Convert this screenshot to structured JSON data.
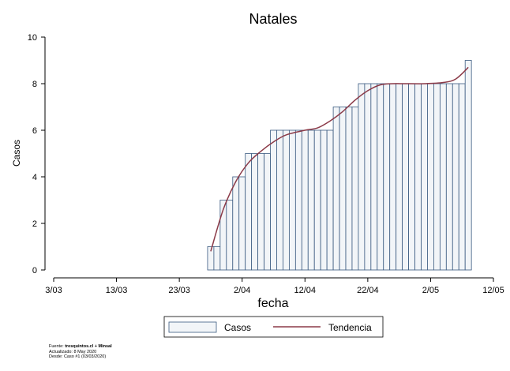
{
  "chart_data": {
    "type": "bar",
    "title": "Natales",
    "xlabel": "fecha",
    "ylabel": "Casos",
    "ylim": [
      0,
      10
    ],
    "yticks": [
      0,
      2,
      4,
      6,
      8,
      10
    ],
    "xlim": [
      "2020-03-03",
      "2020-05-12"
    ],
    "xticks": [
      {
        "date": "2020-03-03",
        "label": "3/03"
      },
      {
        "date": "2020-03-13",
        "label": "13/03"
      },
      {
        "date": "2020-03-23",
        "label": "23/03"
      },
      {
        "date": "2020-04-02",
        "label": "2/04"
      },
      {
        "date": "2020-04-12",
        "label": "12/04"
      },
      {
        "date": "2020-04-22",
        "label": "22/04"
      },
      {
        "date": "2020-05-02",
        "label": "2/05"
      },
      {
        "date": "2020-05-12",
        "label": "12/05"
      }
    ],
    "grid": false,
    "legend_position": "bottom",
    "series": [
      {
        "name": "Casos",
        "type": "bar",
        "x": [
          "2020-03-28",
          "2020-03-29",
          "2020-03-30",
          "2020-03-31",
          "2020-04-01",
          "2020-04-02",
          "2020-04-03",
          "2020-04-04",
          "2020-04-05",
          "2020-04-06",
          "2020-04-07",
          "2020-04-08",
          "2020-04-09",
          "2020-04-10",
          "2020-04-11",
          "2020-04-12",
          "2020-04-13",
          "2020-04-14",
          "2020-04-15",
          "2020-04-16",
          "2020-04-17",
          "2020-04-18",
          "2020-04-19",
          "2020-04-20",
          "2020-04-21",
          "2020-04-22",
          "2020-04-23",
          "2020-04-24",
          "2020-04-25",
          "2020-04-26",
          "2020-04-27",
          "2020-04-28",
          "2020-04-29",
          "2020-04-30",
          "2020-05-01",
          "2020-05-02",
          "2020-05-03",
          "2020-05-04",
          "2020-05-05",
          "2020-05-06",
          "2020-05-07",
          "2020-05-08"
        ],
        "values": [
          1,
          1,
          3,
          3,
          4,
          4,
          5,
          5,
          5,
          5,
          6,
          6,
          6,
          6,
          6,
          6,
          6,
          6,
          6,
          6,
          7,
          7,
          7,
          7,
          8,
          8,
          8,
          8,
          8,
          8,
          8,
          8,
          8,
          8,
          8,
          8,
          8,
          8,
          8,
          8,
          8,
          9
        ],
        "color": "#f2f5f8",
        "stroke": "#3a5a80"
      },
      {
        "name": "Tendencia",
        "type": "line",
        "x": [
          "2020-03-28",
          "2020-03-30",
          "2020-04-01",
          "2020-04-03",
          "2020-04-05",
          "2020-04-07",
          "2020-04-09",
          "2020-04-12",
          "2020-04-14",
          "2020-04-16",
          "2020-04-18",
          "2020-04-20",
          "2020-04-22",
          "2020-04-24",
          "2020-04-26",
          "2020-04-28",
          "2020-05-01",
          "2020-05-04",
          "2020-05-06",
          "2020-05-08"
        ],
        "values": [
          0.8,
          2.6,
          3.8,
          4.6,
          5.1,
          5.5,
          5.8,
          6.0,
          6.1,
          6.4,
          6.8,
          7.3,
          7.7,
          7.95,
          8.0,
          8.0,
          8.0,
          8.05,
          8.2,
          8.7
        ],
        "color": "#8b3a48"
      }
    ],
    "source_lines": [
      {
        "prefix": "Fuente: ",
        "bold": "tresquintos.cl + Minsal"
      },
      {
        "prefix": "Actualizado: 8 May 2020",
        "bold": ""
      },
      {
        "prefix": "Desde: Caso #1  (03/03/2020)",
        "bold": ""
      }
    ]
  }
}
